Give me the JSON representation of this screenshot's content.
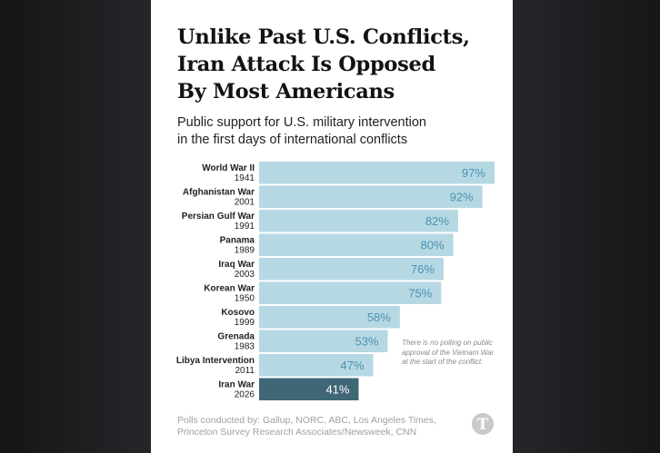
{
  "headline": [
    "Unlike Past U.S. Conflicts,",
    "Iran Attack Is Opposed",
    "By Most Americans"
  ],
  "subtitle": [
    "Public support for U.S. military intervention",
    "in the first days of international conflicts"
  ],
  "footnote": "There is no polling on public approval of the Vietnam War at the start of the conflict.",
  "source": [
    "Polls conducted by: Gallup, NORC, ABC, Los Angeles Times,",
    "Princeton Survey Research Associates/Newsweek, CNN"
  ],
  "logo_icon": "nyt-t-icon",
  "colors": {
    "bar": "#b6d8e3",
    "bar_label": "#4a93b1",
    "highlight_bar": "#3f6776",
    "highlight_label": "#ffffff",
    "conflict_text": "#222222"
  },
  "chart_data": {
    "type": "bar",
    "orientation": "horizontal",
    "title": "",
    "xlabel": "",
    "ylabel": "",
    "xlim": [
      0,
      100
    ],
    "unit": "%",
    "categories": [
      {
        "name": "World War II",
        "year": "1941"
      },
      {
        "name": "Afghanistan War",
        "year": "2001"
      },
      {
        "name": "Persian Gulf War",
        "year": "1991"
      },
      {
        "name": "Panama",
        "year": "1989"
      },
      {
        "name": "Iraq War",
        "year": "2003"
      },
      {
        "name": "Korean War",
        "year": "1950"
      },
      {
        "name": "Kosovo",
        "year": "1999"
      },
      {
        "name": "Grenada",
        "year": "1983"
      },
      {
        "name": "Libya Intervention",
        "year": "2011"
      },
      {
        "name": "Iran War",
        "year": "2026"
      }
    ],
    "values": [
      97,
      92,
      82,
      80,
      76,
      75,
      58,
      53,
      47,
      41
    ],
    "highlight": "Iran War"
  }
}
